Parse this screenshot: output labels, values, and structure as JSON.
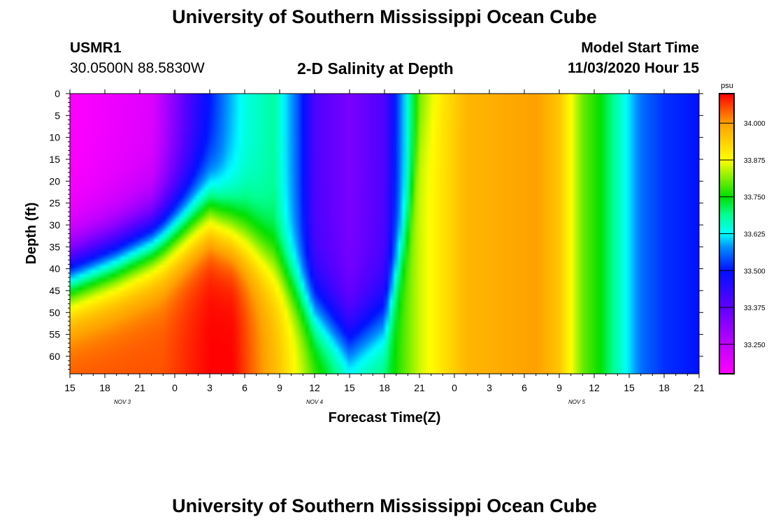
{
  "page": {
    "title_top": "University of Southern Mississippi Ocean Cube",
    "title_bottom": "University of Southern Mississippi Ocean Cube",
    "station_id": "USMR1",
    "station_coords": "30.0500N 88.5830W",
    "model_start_label": "Model Start Time",
    "model_start_value": "11/03/2020 Hour 15"
  },
  "chart_data": {
    "type": "heatmap",
    "title": "2-D Salinity at Depth",
    "xlabel": "Forecast Time(Z)",
    "ylabel": "Depth (ft)",
    "x_unit": "forecast hours from 11/03/2020 15Z",
    "xlim": [
      0,
      54
    ],
    "ylim": [
      0,
      64
    ],
    "y_ticks": [
      0,
      5,
      10,
      15,
      20,
      25,
      30,
      35,
      40,
      45,
      50,
      55,
      60
    ],
    "x_ticks": [
      {
        "hour": 0,
        "label": "15"
      },
      {
        "hour": 3,
        "label": "18"
      },
      {
        "hour": 6,
        "label": "21"
      },
      {
        "hour": 9,
        "label": "0"
      },
      {
        "hour": 12,
        "label": "3"
      },
      {
        "hour": 15,
        "label": "6"
      },
      {
        "hour": 18,
        "label": "9"
      },
      {
        "hour": 21,
        "label": "12"
      },
      {
        "hour": 24,
        "label": "15"
      },
      {
        "hour": 27,
        "label": "18"
      },
      {
        "hour": 30,
        "label": "21"
      },
      {
        "hour": 33,
        "label": "0"
      },
      {
        "hour": 36,
        "label": "3"
      },
      {
        "hour": 39,
        "label": "6"
      },
      {
        "hour": 42,
        "label": "9"
      },
      {
        "hour": 45,
        "label": "12"
      },
      {
        "hour": 48,
        "label": "15"
      },
      {
        "hour": 51,
        "label": "18"
      },
      {
        "hour": 54,
        "label": "21"
      }
    ],
    "date_labels": [
      {
        "hour": 4.5,
        "label": "NOV 3"
      },
      {
        "hour": 21,
        "label": "NOV 4"
      },
      {
        "hour": 43.5,
        "label": "NOV 5"
      }
    ],
    "colorbar": {
      "unit": "psu",
      "min": 33.15,
      "max": 34.1,
      "ticks": [
        34.0,
        33.875,
        33.75,
        33.625,
        33.5,
        33.375,
        33.25
      ],
      "tick_labels": [
        "34.000",
        "33.875",
        "33.750",
        "33.625",
        "33.500",
        "33.375",
        "33.250"
      ],
      "stops": [
        {
          "v": 33.15,
          "color": "#ff00ff"
        },
        {
          "v": 33.25,
          "color": "#c000ff"
        },
        {
          "v": 33.375,
          "color": "#6000ff"
        },
        {
          "v": 33.5,
          "color": "#0010ff"
        },
        {
          "v": 33.58,
          "color": "#0090ff"
        },
        {
          "v": 33.625,
          "color": "#00ffff"
        },
        {
          "v": 33.69,
          "color": "#00ff90"
        },
        {
          "v": 33.75,
          "color": "#00e000"
        },
        {
          "v": 33.875,
          "color": "#ffff00"
        },
        {
          "v": 34.0,
          "color": "#ffa000"
        },
        {
          "v": 34.1,
          "color": "#ff0000"
        }
      ]
    },
    "surface_salinity_by_hour": [
      [
        0,
        33.15
      ],
      [
        7,
        33.2
      ],
      [
        11,
        33.45
      ],
      [
        12,
        33.5
      ],
      [
        13.5,
        33.58
      ],
      [
        15,
        33.64
      ],
      [
        17.5,
        33.68
      ],
      [
        19.5,
        33.55
      ],
      [
        21,
        33.4
      ],
      [
        24,
        33.34
      ],
      [
        27,
        33.4
      ],
      [
        28.5,
        33.58
      ],
      [
        30,
        33.8
      ],
      [
        32,
        33.9
      ],
      [
        34,
        33.97
      ],
      [
        40,
        34.0
      ],
      [
        42,
        33.95
      ],
      [
        44,
        33.8
      ],
      [
        45.5,
        33.75
      ],
      [
        47.5,
        33.64
      ],
      [
        49,
        33.56
      ],
      [
        51,
        33.52
      ],
      [
        54,
        33.5
      ]
    ],
    "bottom_salinity_by_hour": [
      [
        0,
        34.05
      ],
      [
        8,
        34.05
      ],
      [
        12,
        34.1
      ],
      [
        14,
        34.1
      ],
      [
        18,
        33.95
      ],
      [
        21,
        33.8
      ],
      [
        24,
        33.7
      ],
      [
        27,
        33.72
      ],
      [
        30,
        33.85
      ],
      [
        34,
        33.97
      ],
      [
        40,
        34.0
      ],
      [
        42,
        33.95
      ],
      [
        44,
        33.8
      ],
      [
        45.5,
        33.75
      ],
      [
        47.5,
        33.64
      ],
      [
        49,
        33.56
      ],
      [
        51,
        33.52
      ],
      [
        54,
        33.5
      ]
    ],
    "halocline_depth_ft_by_hour": [
      [
        0,
        42
      ],
      [
        4,
        38
      ],
      [
        8,
        33
      ],
      [
        10.5,
        29
      ],
      [
        12,
        27
      ],
      [
        14,
        31
      ],
      [
        15.5,
        34
      ],
      [
        18,
        40
      ],
      [
        21,
        50
      ],
      [
        24,
        57
      ],
      [
        27,
        52
      ],
      [
        29,
        30
      ],
      [
        30,
        10
      ],
      [
        32,
        0
      ],
      [
        54,
        0
      ]
    ]
  }
}
